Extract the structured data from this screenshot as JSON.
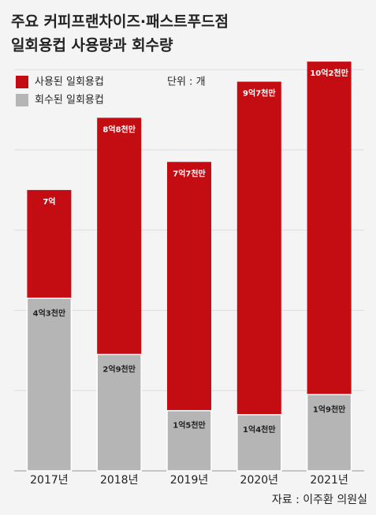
{
  "chart_data": {
    "type": "overlap-bar",
    "title": [
      "주요 커피프랜차이즈·패스트푸드점",
      "일회용컵 사용량과 회수량"
    ],
    "unit": "단위 : 개",
    "source": "자료 : 이주환 의원실",
    "categories": [
      "2017년",
      "2018년",
      "2019년",
      "2020년",
      "2021년"
    ],
    "series": [
      {
        "name": "사용된 일회용컵",
        "color": "#c40d12",
        "values": [
          7,
          8.8,
          7.7,
          9.7,
          10.2
        ],
        "value_labels": [
          "7억",
          "8억8천만",
          "7억7천만",
          "9억7천만",
          "10억2천만"
        ]
      },
      {
        "name": "회수된 일회용컵",
        "color": "#b5b5b5",
        "values": [
          4.3,
          2.9,
          1.5,
          1.4,
          1.9
        ],
        "value_labels": [
          "4억3천만",
          "2억9천만",
          "1억5천만",
          "1억4천만",
          "1억9천만"
        ]
      }
    ],
    "ylim": [
      0,
      11.5
    ],
    "yticks": [
      0,
      2,
      4,
      6,
      8,
      10
    ],
    "grid": true
  }
}
